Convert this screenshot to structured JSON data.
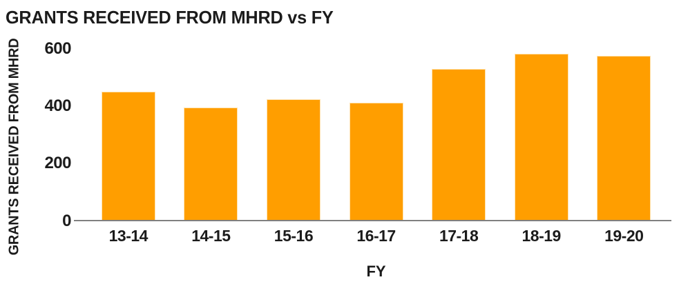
{
  "chart_data": {
    "type": "bar",
    "title": "GRANTS RECEIVED FROM MHRD vs FY",
    "xlabel": "FY",
    "ylabel": "GRANTS RECEIVED FROM MHRD",
    "categories": [
      "13-14",
      "14-15",
      "15-16",
      "16-17",
      "17-18",
      "18-19",
      "19-20"
    ],
    "values": [
      448,
      394,
      422,
      410,
      528,
      582,
      574
    ],
    "yticks": [
      0,
      200,
      400,
      600
    ],
    "ylim": [
      0,
      600
    ],
    "grid": false,
    "legend": false,
    "colors": {
      "bar_fill": "#FF9E00",
      "bar_edge": "#FFE2AE",
      "axis_line": "#7F7F7F",
      "text": "#1B1B1B",
      "background": "#FFFFFF"
    }
  }
}
